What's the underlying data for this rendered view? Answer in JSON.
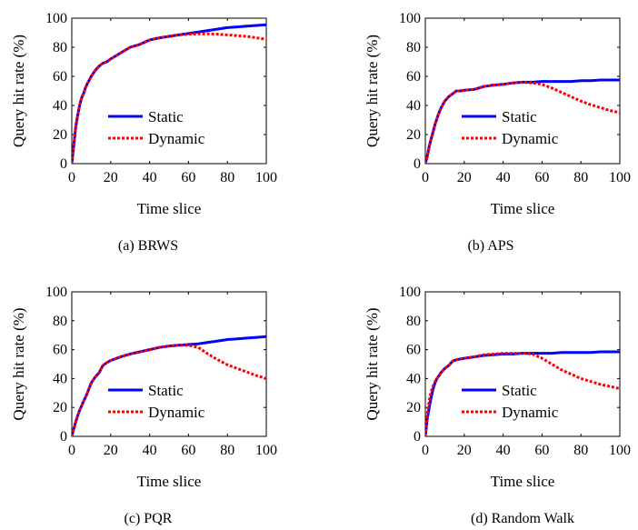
{
  "chart_data": [
    {
      "type": "line",
      "caption": "(a) BRWS",
      "xlabel": "Time slice",
      "ylabel": "Query hit rate (%)",
      "xlim": [
        0,
        100
      ],
      "ylim": [
        0,
        100
      ],
      "xticks": [
        "0",
        "20",
        "40",
        "60",
        "80",
        "100"
      ],
      "yticks": [
        "0",
        "20",
        "40",
        "60",
        "80",
        "100"
      ],
      "legend": "center-right",
      "grid": false,
      "series": [
        {
          "name": "Static",
          "color": "#0000ff",
          "style": "solid",
          "x": [
            0,
            1,
            2,
            3,
            4,
            5,
            6,
            7,
            8,
            10,
            12,
            14,
            16,
            18,
            20,
            25,
            30,
            35,
            40,
            45,
            50,
            55,
            60,
            65,
            70,
            75,
            80,
            85,
            90,
            95,
            100
          ],
          "y": [
            0,
            12,
            25,
            33,
            40,
            45,
            48,
            52,
            55,
            60,
            64,
            67,
            69,
            70,
            72,
            76,
            80,
            82,
            85,
            86.5,
            87.5,
            88.5,
            89.5,
            90.5,
            91.5,
            92.5,
            93.5,
            94,
            94.5,
            95,
            95.5
          ]
        },
        {
          "name": "Dynamic",
          "color": "#ff0000",
          "style": "dotted",
          "x": [
            0,
            1,
            2,
            3,
            4,
            5,
            6,
            7,
            8,
            10,
            12,
            14,
            16,
            18,
            20,
            25,
            30,
            35,
            40,
            45,
            50,
            55,
            60,
            65,
            70,
            75,
            80,
            85,
            90,
            95,
            100
          ],
          "y": [
            0,
            12,
            25,
            33,
            40,
            45,
            48,
            52,
            55,
            60,
            64,
            67,
            69,
            70,
            72,
            76,
            80,
            82,
            85,
            86.5,
            87.5,
            88.5,
            89,
            89.2,
            89.2,
            89,
            88.5,
            88,
            87.5,
            86.5,
            85.5
          ]
        }
      ]
    },
    {
      "type": "line",
      "caption": "(b) APS",
      "xlabel": "Time slice",
      "ylabel": "Query hit rate (%)",
      "xlim": [
        0,
        100
      ],
      "ylim": [
        0,
        100
      ],
      "xticks": [
        "0",
        "20",
        "40",
        "60",
        "80",
        "100"
      ],
      "yticks": [
        "0",
        "20",
        "40",
        "60",
        "80",
        "100"
      ],
      "legend": "center-right",
      "grid": false,
      "series": [
        {
          "name": "Static",
          "color": "#0000ff",
          "style": "solid",
          "x": [
            0,
            1,
            2,
            3,
            4,
            5,
            6,
            7,
            8,
            10,
            12,
            14,
            16,
            18,
            20,
            25,
            30,
            35,
            40,
            45,
            50,
            55,
            60,
            65,
            70,
            75,
            80,
            85,
            90,
            95,
            100
          ],
          "y": [
            0,
            5,
            12,
            17,
            22,
            27,
            31,
            35,
            38,
            43,
            46,
            48,
            50,
            50,
            50.5,
            51,
            53,
            54,
            54.5,
            55.5,
            56,
            56,
            56.5,
            56.5,
            56.5,
            56.5,
            57,
            57,
            57.5,
            57.5,
            57.5
          ]
        },
        {
          "name": "Dynamic",
          "color": "#ff0000",
          "style": "dotted",
          "x": [
            0,
            1,
            2,
            3,
            4,
            5,
            6,
            7,
            8,
            10,
            12,
            14,
            16,
            18,
            20,
            25,
            30,
            35,
            40,
            45,
            50,
            55,
            60,
            65,
            70,
            75,
            80,
            85,
            90,
            95,
            100
          ],
          "y": [
            0,
            5,
            12,
            17,
            22,
            27,
            31,
            35,
            38,
            43,
            46,
            48,
            50,
            50,
            50.5,
            51,
            53,
            54,
            54.5,
            55.5,
            56,
            55.5,
            54.5,
            52,
            49,
            46,
            43,
            40.5,
            38.5,
            36.5,
            35
          ]
        }
      ]
    },
    {
      "type": "line",
      "caption": "(c) PQR",
      "xlabel": "Time slice",
      "ylabel": "Query hit rate (%)",
      "xlim": [
        0,
        100
      ],
      "ylim": [
        0,
        100
      ],
      "xticks": [
        "0",
        "20",
        "40",
        "60",
        "80",
        "100"
      ],
      "yticks": [
        "0",
        "20",
        "40",
        "60",
        "80",
        "100"
      ],
      "legend": "center-right",
      "grid": false,
      "series": [
        {
          "name": "Static",
          "color": "#0000ff",
          "style": "solid",
          "x": [
            0,
            1,
            2,
            3,
            4,
            5,
            6,
            7,
            8,
            10,
            12,
            14,
            16,
            18,
            20,
            25,
            30,
            35,
            40,
            45,
            50,
            55,
            60,
            65,
            70,
            75,
            80,
            85,
            90,
            95,
            100
          ],
          "y": [
            0,
            5,
            10,
            14,
            18,
            21,
            24,
            27,
            30,
            37,
            41,
            44,
            49,
            51,
            52.5,
            55,
            57,
            58.5,
            60,
            61.5,
            62.5,
            63,
            63.5,
            64,
            65,
            66,
            67,
            67.5,
            68,
            68.5,
            69
          ]
        },
        {
          "name": "Dynamic",
          "color": "#ff0000",
          "style": "dotted",
          "x": [
            0,
            1,
            2,
            3,
            4,
            5,
            6,
            7,
            8,
            10,
            12,
            14,
            16,
            18,
            20,
            25,
            30,
            35,
            40,
            45,
            50,
            55,
            60,
            65,
            70,
            75,
            80,
            85,
            90,
            95,
            100
          ],
          "y": [
            0,
            5,
            10,
            14,
            18,
            21,
            24,
            27,
            30,
            37,
            41,
            44,
            49,
            51,
            52.5,
            55,
            57,
            58.5,
            60,
            61.5,
            62.5,
            63,
            63,
            61.5,
            57,
            53,
            49.5,
            47,
            44.5,
            42,
            40
          ]
        }
      ]
    },
    {
      "type": "line",
      "caption": "(d) Random Walk",
      "xlabel": "Time slice",
      "ylabel": "Query hit rate (%)",
      "xlim": [
        0,
        100
      ],
      "ylim": [
        0,
        100
      ],
      "xticks": [
        "0",
        "20",
        "40",
        "60",
        "80",
        "100"
      ],
      "yticks": [
        "0",
        "20",
        "40",
        "60",
        "80",
        "100"
      ],
      "legend": "center-right",
      "grid": false,
      "series": [
        {
          "name": "Static",
          "color": "#0000ff",
          "style": "solid",
          "x": [
            0,
            1,
            2,
            3,
            4,
            5,
            6,
            7,
            8,
            10,
            12,
            14,
            16,
            18,
            20,
            25,
            30,
            35,
            40,
            45,
            50,
            55,
            60,
            65,
            70,
            75,
            80,
            85,
            90,
            95,
            100
          ],
          "y": [
            0,
            12,
            20,
            27,
            33,
            37,
            40,
            42,
            44,
            47,
            49,
            52,
            53,
            53.5,
            54,
            55,
            56,
            56.5,
            57,
            57,
            57.5,
            57.5,
            57.5,
            57.5,
            58,
            58,
            58,
            58,
            58.5,
            58.5,
            58.5
          ]
        },
        {
          "name": "Dynamic",
          "color": "#ff0000",
          "style": "dotted",
          "x": [
            0,
            1,
            2,
            3,
            4,
            5,
            6,
            7,
            8,
            10,
            12,
            14,
            16,
            18,
            20,
            25,
            30,
            35,
            40,
            45,
            50,
            55,
            60,
            65,
            70,
            75,
            80,
            85,
            90,
            95,
            100
          ],
          "y": [
            0,
            15,
            25,
            31,
            35,
            38,
            40,
            42,
            44,
            47,
            49,
            52,
            53,
            53.5,
            54,
            55,
            56.5,
            57,
            57.5,
            57.5,
            57.5,
            57,
            54,
            50,
            46,
            43,
            40,
            38,
            36,
            34.5,
            33
          ]
        }
      ]
    }
  ]
}
